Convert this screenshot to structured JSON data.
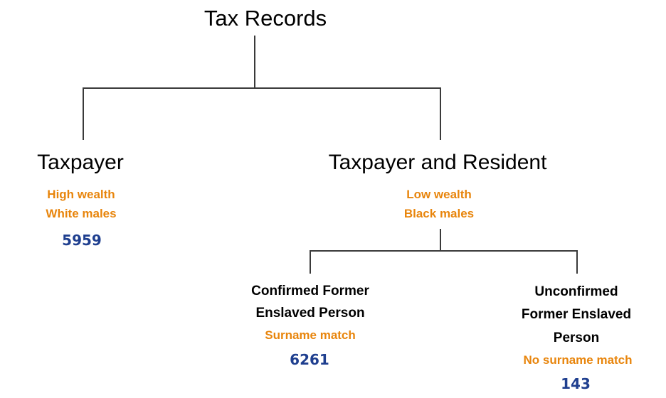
{
  "colors": {
    "attribute": "#E8850C",
    "count": "#1F3F8F",
    "line": "#3a3a3a",
    "text": "#000000"
  },
  "root": {
    "label": "Tax Records"
  },
  "taxpayer": {
    "label": "Taxpayer",
    "attributes": [
      "High wealth",
      "White males"
    ],
    "count": "5959"
  },
  "taxpayer_resident": {
    "label": "Taxpayer and Resident",
    "attributes": [
      "Low wealth",
      "Black males"
    ],
    "children": {
      "confirmed": {
        "label_lines": [
          "Confirmed Former",
          "Enslaved Person"
        ],
        "attribute": "Surname match",
        "count": "6261"
      },
      "unconfirmed": {
        "label_lines": [
          "Unconfirmed",
          "Former Enslaved",
          "Person"
        ],
        "attribute": "No surname match",
        "count": "143"
      }
    }
  }
}
